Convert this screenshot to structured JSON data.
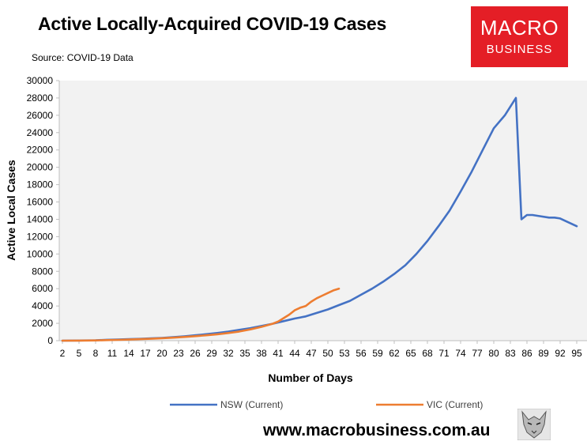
{
  "header": {
    "title": "Active Locally-Acquired COVID-19 Cases",
    "source": "Source: COVID-19 Data"
  },
  "logo": {
    "line1": "MACRO",
    "line2": "BUSINESS",
    "color": "#e41e26"
  },
  "footer": {
    "url": "www.macrobusiness.com.au"
  },
  "chart_data": {
    "type": "line",
    "title": "Active Locally-Acquired COVID-19 Cases",
    "xlabel": "Number of Days",
    "ylabel": "Active Local Cases",
    "xlim": [
      2,
      95
    ],
    "ylim": [
      0,
      30000
    ],
    "x_ticks": [
      2,
      5,
      8,
      11,
      14,
      17,
      20,
      23,
      26,
      29,
      32,
      35,
      38,
      41,
      44,
      47,
      50,
      53,
      56,
      59,
      62,
      65,
      68,
      71,
      74,
      77,
      80,
      83,
      86,
      89,
      92,
      95
    ],
    "y_ticks": [
      0,
      2000,
      4000,
      6000,
      8000,
      10000,
      12000,
      14000,
      16000,
      18000,
      20000,
      22000,
      24000,
      26000,
      28000,
      30000
    ],
    "grid": false,
    "legend_position": "bottom",
    "plot_background": "#f2f2f2",
    "series": [
      {
        "name": "NSW (Current)",
        "color": "#4472c4",
        "x": [
          2,
          5,
          8,
          10,
          12,
          14,
          16,
          18,
          20,
          22,
          24,
          26,
          28,
          30,
          32,
          34,
          36,
          38,
          40,
          42,
          44,
          46,
          48,
          50,
          52,
          54,
          56,
          58,
          60,
          62,
          64,
          66,
          68,
          70,
          72,
          74,
          76,
          78,
          80,
          82,
          84,
          85,
          86,
          87,
          88,
          90,
          91,
          92,
          93,
          95
        ],
        "y": [
          0,
          20,
          50,
          100,
          130,
          170,
          210,
          260,
          320,
          400,
          500,
          620,
          750,
          880,
          1050,
          1250,
          1450,
          1700,
          1950,
          2250,
          2550,
          2800,
          3200,
          3600,
          4100,
          4600,
          5300,
          6000,
          6800,
          7700,
          8700,
          10000,
          11500,
          13200,
          15000,
          17200,
          19500,
          22000,
          24500,
          26000,
          28000,
          14000,
          14500,
          14500,
          14400,
          14200,
          14200,
          14100,
          13800,
          13200
        ]
      },
      {
        "name": "VIC (Current)",
        "color": "#ed7d31",
        "x": [
          2,
          5,
          8,
          10,
          12,
          14,
          16,
          18,
          20,
          22,
          24,
          26,
          28,
          30,
          32,
          34,
          36,
          38,
          40,
          41,
          42,
          43,
          44,
          45,
          46,
          47,
          48,
          49,
          50,
          51,
          52
        ],
        "y": [
          0,
          10,
          30,
          60,
          90,
          130,
          170,
          220,
          280,
          350,
          430,
          520,
          620,
          740,
          880,
          1060,
          1300,
          1600,
          1950,
          2200,
          2600,
          3000,
          3500,
          3800,
          4000,
          4500,
          4900,
          5200,
          5500,
          5800,
          6000
        ]
      }
    ]
  }
}
